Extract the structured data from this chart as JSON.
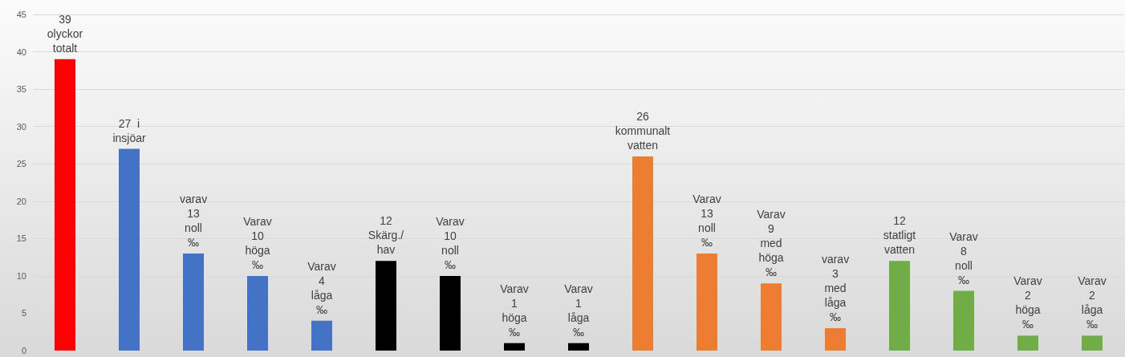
{
  "chart_data": {
    "type": "bar",
    "categories": [
      null,
      null,
      null,
      null,
      null,
      null,
      null,
      null,
      null,
      null,
      null,
      null,
      null,
      null,
      null,
      null,
      null
    ],
    "values": [
      39,
      27,
      13,
      10,
      4,
      12,
      10,
      1,
      1,
      26,
      13,
      9,
      3,
      12,
      8,
      2,
      2
    ],
    "colors": [
      "#ff0000",
      "#4472c4",
      "#4472c4",
      "#4472c4",
      "#4472c4",
      "#000000",
      "#000000",
      "#000000",
      "#000000",
      "#ed7d31",
      "#ed7d31",
      "#ed7d31",
      "#ed7d31",
      "#70ad47",
      "#70ad47",
      "#70ad47",
      "#70ad47"
    ],
    "value_labels": [
      "39\nolyckor\ntotalt",
      "27  i\ninsjöar",
      "varav\n13\nnoll\n‰",
      "Varav\n10\nhöga\n‰",
      "Varav\n4\nlåga\n‰",
      "12\nSkärg./\nhav",
      "Varav\n10\nnoll\n‰",
      "Varav\n1\nhöga\n‰",
      "Varav\n1\nlåga\n‰",
      "26\nkommunalt\nvatten",
      "Varav\n13\nnoll\n‰",
      "Varav\n9\nmed\nhöga\n‰",
      "varav\n3\nmed\nlåga\n‰",
      "12\nstatligt\nvatten",
      "Varav\n8\nnoll\n‰",
      "Varav\n2\nhöga\n‰",
      "Varav\n2\nlåga\n‰"
    ],
    "ylim": [
      0,
      45
    ],
    "yticks": [
      0,
      5,
      10,
      15,
      20,
      25,
      30,
      35,
      40,
      45
    ],
    "grid": "y"
  }
}
